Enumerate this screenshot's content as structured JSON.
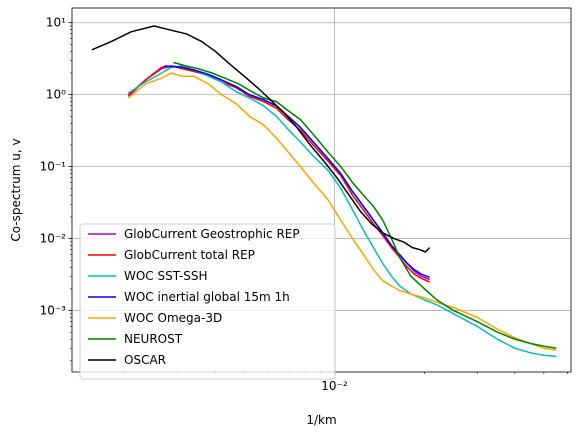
{
  "chart_data": {
    "type": "line",
    "title": "",
    "xlabel": "1/km",
    "ylabel": "Co-spectrum u, v",
    "xscale": "log",
    "yscale": "log",
    "xlim": [
      0.00133,
      0.0616
    ],
    "ylim": [
      0.00014,
      16
    ],
    "grid": true,
    "legend_position": "lower left",
    "x_ticks": [
      {
        "value": 0.01,
        "label": "10⁻²"
      }
    ],
    "y_ticks": [
      {
        "value": 0.001,
        "label": "10⁻³"
      },
      {
        "value": 0.01,
        "label": "10⁻²"
      },
      {
        "value": 0.1,
        "label": "10⁻¹"
      },
      {
        "value": 1,
        "label": "10⁰"
      },
      {
        "value": 10,
        "label": "10¹"
      }
    ],
    "series": [
      {
        "name": "GlobCurrent Geostrophic REP",
        "color": "#bf00bf",
        "x": [
          0.00205,
          0.00234,
          0.00265,
          0.00285,
          0.0031,
          0.0034,
          0.0038,
          0.0042,
          0.0047,
          0.0052,
          0.0058,
          0.0064,
          0.007,
          0.0077,
          0.0085,
          0.0095,
          0.0105,
          0.0115,
          0.0125,
          0.0135,
          0.0145,
          0.0155,
          0.0165,
          0.0175,
          0.0185,
          0.0195,
          0.0208
        ],
        "y": [
          1.0,
          1.6,
          2.3,
          2.5,
          2.4,
          2.2,
          1.9,
          1.6,
          1.3,
          1.0,
          0.85,
          0.7,
          0.5,
          0.35,
          0.22,
          0.13,
          0.08,
          0.045,
          0.028,
          0.018,
          0.012,
          0.008,
          0.006,
          0.0045,
          0.0035,
          0.003,
          0.0027
        ]
      },
      {
        "name": "GlobCurrent total REP",
        "color": "#ff0000",
        "x": [
          0.00205,
          0.00234,
          0.00265,
          0.00285,
          0.0031,
          0.0034,
          0.0038,
          0.0042,
          0.0047,
          0.0052,
          0.0058,
          0.0064,
          0.007,
          0.0077,
          0.0085,
          0.0095,
          0.0105,
          0.0115,
          0.0125,
          0.0135,
          0.0145,
          0.0155,
          0.0165,
          0.0175,
          0.0185,
          0.0195,
          0.0208
        ],
        "y": [
          0.95,
          1.6,
          2.4,
          2.5,
          2.3,
          2.1,
          1.85,
          1.5,
          1.25,
          0.95,
          0.8,
          0.65,
          0.45,
          0.32,
          0.2,
          0.12,
          0.075,
          0.04,
          0.025,
          0.016,
          0.011,
          0.0075,
          0.0055,
          0.004,
          0.0032,
          0.0028,
          0.0025
        ]
      },
      {
        "name": "WOC SST-SSH",
        "color": "#00bfbf",
        "x": [
          0.00205,
          0.00234,
          0.00265,
          0.00285,
          0.0031,
          0.0034,
          0.0038,
          0.0042,
          0.0047,
          0.0052,
          0.0058,
          0.0064,
          0.007,
          0.0077,
          0.0085,
          0.0095,
          0.0105,
          0.0115,
          0.0125,
          0.0135,
          0.0145,
          0.0155,
          0.0165,
          0.018,
          0.02,
          0.022,
          0.025,
          0.03,
          0.035,
          0.04,
          0.045,
          0.05,
          0.055
        ],
        "y": [
          1.05,
          1.5,
          2.0,
          2.4,
          2.5,
          2.2,
          1.8,
          1.5,
          1.1,
          0.9,
          0.7,
          0.5,
          0.33,
          0.22,
          0.14,
          0.09,
          0.05,
          0.025,
          0.013,
          0.0075,
          0.0045,
          0.003,
          0.0022,
          0.0017,
          0.0014,
          0.0012,
          0.0009,
          0.0006,
          0.0004,
          0.0003,
          0.00026,
          0.00024,
          0.00023
        ]
      },
      {
        "name": "WOC inertial global 15m 1h",
        "color": "#0000ff",
        "x": [
          0.0027,
          0.0031,
          0.0034,
          0.0038,
          0.0042,
          0.0047,
          0.0052,
          0.0058,
          0.0064,
          0.007,
          0.0077,
          0.0085,
          0.0095,
          0.0105,
          0.0115,
          0.0125,
          0.0135,
          0.0145,
          0.0155,
          0.0165,
          0.0175,
          0.0185,
          0.0195,
          0.0208
        ],
        "y": [
          2.5,
          2.4,
          2.2,
          1.9,
          1.6,
          1.3,
          1.0,
          0.85,
          0.7,
          0.5,
          0.35,
          0.22,
          0.13,
          0.08,
          0.045,
          0.028,
          0.018,
          0.012,
          0.008,
          0.006,
          0.0045,
          0.0037,
          0.0032,
          0.0029
        ]
      },
      {
        "name": "WOC Omega-3D",
        "color": "#ffa500",
        "x": [
          0.00205,
          0.00234,
          0.00265,
          0.00285,
          0.0031,
          0.0034,
          0.0038,
          0.0042,
          0.0047,
          0.0052,
          0.0058,
          0.0064,
          0.007,
          0.0077,
          0.0085,
          0.0095,
          0.0105,
          0.0115,
          0.0125,
          0.0135,
          0.0145,
          0.0155,
          0.0165,
          0.018,
          0.02,
          0.022,
          0.025,
          0.03,
          0.035,
          0.04,
          0.045,
          0.05,
          0.055
        ],
        "y": [
          0.9,
          1.4,
          1.7,
          2.0,
          1.8,
          1.8,
          1.4,
          1.0,
          0.75,
          0.5,
          0.38,
          0.25,
          0.16,
          0.1,
          0.06,
          0.035,
          0.018,
          0.01,
          0.006,
          0.0037,
          0.0026,
          0.0022,
          0.0019,
          0.0017,
          0.0015,
          0.0013,
          0.0011,
          0.0008,
          0.00055,
          0.00042,
          0.00035,
          0.0003,
          0.00028
        ]
      },
      {
        "name": "NEUROST",
        "color": "#008000",
        "x": [
          0.0029,
          0.0032,
          0.0035,
          0.0039,
          0.0043,
          0.0048,
          0.0053,
          0.0058,
          0.0064,
          0.007,
          0.0077,
          0.0085,
          0.0095,
          0.0105,
          0.0115,
          0.0125,
          0.0135,
          0.0145,
          0.0155,
          0.0165,
          0.018,
          0.02,
          0.022,
          0.025,
          0.03,
          0.035,
          0.04,
          0.045,
          0.05,
          0.055
        ],
        "y": [
          2.8,
          2.5,
          2.3,
          2.0,
          1.7,
          1.4,
          1.1,
          0.9,
          0.8,
          0.6,
          0.45,
          0.28,
          0.16,
          0.1,
          0.06,
          0.04,
          0.028,
          0.018,
          0.01,
          0.0055,
          0.003,
          0.002,
          0.0014,
          0.001,
          0.0007,
          0.0005,
          0.0004,
          0.00035,
          0.00032,
          0.0003
        ]
      },
      {
        "name": "OSCAR",
        "color": "#000000",
        "x": [
          0.00155,
          0.0018,
          0.0021,
          0.0025,
          0.0028,
          0.0032,
          0.0036,
          0.004,
          0.0045,
          0.005,
          0.0056,
          0.0062,
          0.0068,
          0.0075,
          0.0083,
          0.0092,
          0.0102,
          0.0112,
          0.0122,
          0.0133,
          0.0145,
          0.0158,
          0.017,
          0.0182,
          0.0193,
          0.0201,
          0.0208
        ],
        "y": [
          4.2,
          5.5,
          7.5,
          9.0,
          8.0,
          7.0,
          5.5,
          4.0,
          2.6,
          1.8,
          1.2,
          0.8,
          0.55,
          0.35,
          0.2,
          0.12,
          0.07,
          0.04,
          0.024,
          0.016,
          0.012,
          0.01,
          0.009,
          0.0075,
          0.007,
          0.0065,
          0.0075
        ]
      }
    ]
  }
}
